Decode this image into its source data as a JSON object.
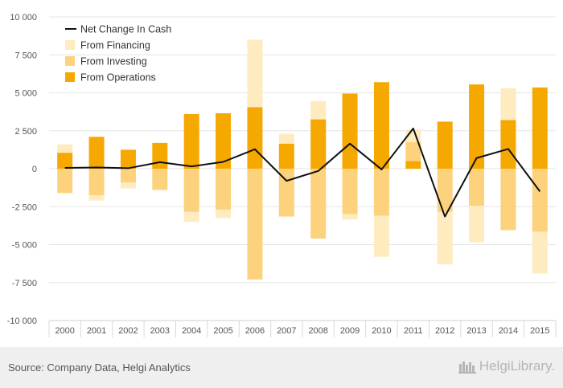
{
  "chart_data": {
    "type": "bar",
    "stacked": true,
    "categories": [
      "2000",
      "2001",
      "2002",
      "2003",
      "2004",
      "2005",
      "2006",
      "2007",
      "2008",
      "2009",
      "2010",
      "2011",
      "2012",
      "2013",
      "2014",
      "2015"
    ],
    "series": [
      {
        "name": "From Operations",
        "kind": "bar",
        "color": "#f5a800",
        "values": [
          1050,
          2100,
          1250,
          1700,
          3600,
          3650,
          4050,
          1650,
          3250,
          4950,
          5700,
          500,
          3100,
          5550,
          3200,
          5350
        ]
      },
      {
        "name": "From Investing",
        "kind": "bar",
        "color": "#fdd27d",
        "values": [
          -1600,
          -1750,
          -900,
          -1400,
          -2850,
          -2700,
          -7300,
          -3150,
          -4600,
          -3000,
          -3100,
          1250,
          -2850,
          -2450,
          -4050,
          -4150
        ]
      },
      {
        "name": "From Financing",
        "kind": "bar",
        "color": "#feebc0",
        "values": [
          550,
          -350,
          -400,
          0,
          -650,
          -550,
          4450,
          650,
          1200,
          -350,
          -2700,
          850,
          -3450,
          -2400,
          2100,
          -2750
        ]
      },
      {
        "name": "Net Change In Cash",
        "kind": "line",
        "color": "#111111",
        "values": [
          50,
          80,
          30,
          430,
          150,
          450,
          1280,
          -800,
          -150,
          1650,
          -50,
          2650,
          -3150,
          700,
          1300,
          -1500
        ]
      }
    ],
    "y_ticks": [
      10000,
      7500,
      5000,
      2500,
      0,
      -2500,
      -5000,
      -7500,
      -10000
    ],
    "y_tick_labels": [
      "10 000",
      "7 500",
      "5 000",
      "2 500",
      "0",
      "-2 500",
      "-5 000",
      "-7 500",
      "-10 000"
    ],
    "ylim": [
      -10000,
      10000
    ],
    "grid": true,
    "legend_position": "top-left",
    "legend_order": [
      "Net Change In Cash",
      "From Financing",
      "From Investing",
      "From Operations"
    ]
  },
  "footer": {
    "source": "Source: Company Data, Helgi Analytics",
    "brand": "HelgiLibrary."
  }
}
